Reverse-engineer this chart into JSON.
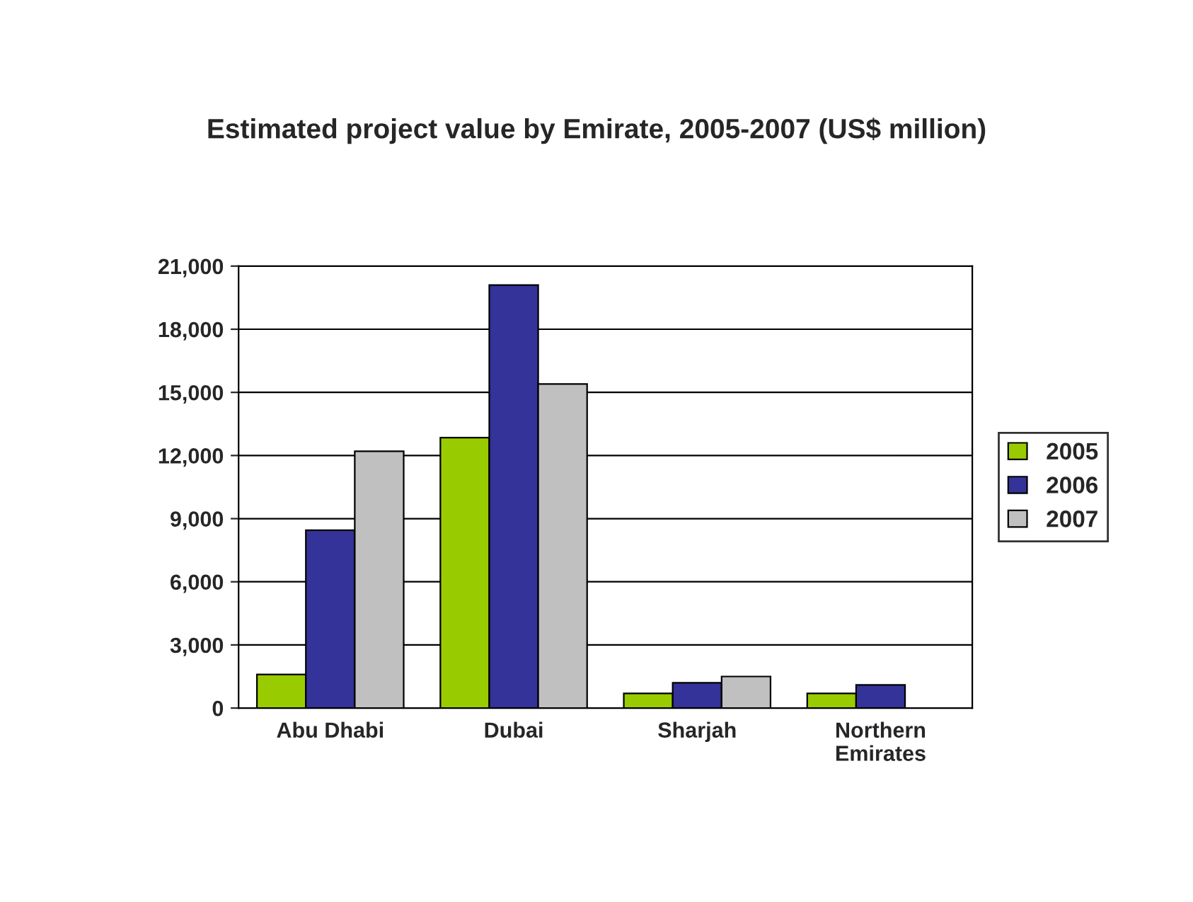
{
  "chart_data": {
    "type": "bar",
    "title": "Estimated project value by Emirate, 2005-2007 (US$ million)",
    "categories": [
      "Abu Dhabi",
      "Dubai",
      "Sharjah",
      "Northern\nEmirates"
    ],
    "series": [
      {
        "name": "2005",
        "color": "#99cc00",
        "values": [
          1600,
          12850,
          700,
          700
        ]
      },
      {
        "name": "2006",
        "color": "#333399",
        "values": [
          8450,
          20100,
          1200,
          1100
        ]
      },
      {
        "name": "2007",
        "color": "#c0c0c0",
        "values": [
          12200,
          15400,
          1500,
          0
        ]
      }
    ],
    "ylim": [
      0,
      21000
    ],
    "yticks": [
      {
        "value": 0,
        "label": "0"
      },
      {
        "value": 3000,
        "label": "3,000"
      },
      {
        "value": 6000,
        "label": "6,000"
      },
      {
        "value": 9000,
        "label": "9,000"
      },
      {
        "value": 12000,
        "label": "12,000"
      },
      {
        "value": 15000,
        "label": "15,000"
      },
      {
        "value": 18000,
        "label": "18,000"
      },
      {
        "value": 21000,
        "label": "21,000"
      }
    ],
    "grid": "y",
    "legend": "right"
  }
}
